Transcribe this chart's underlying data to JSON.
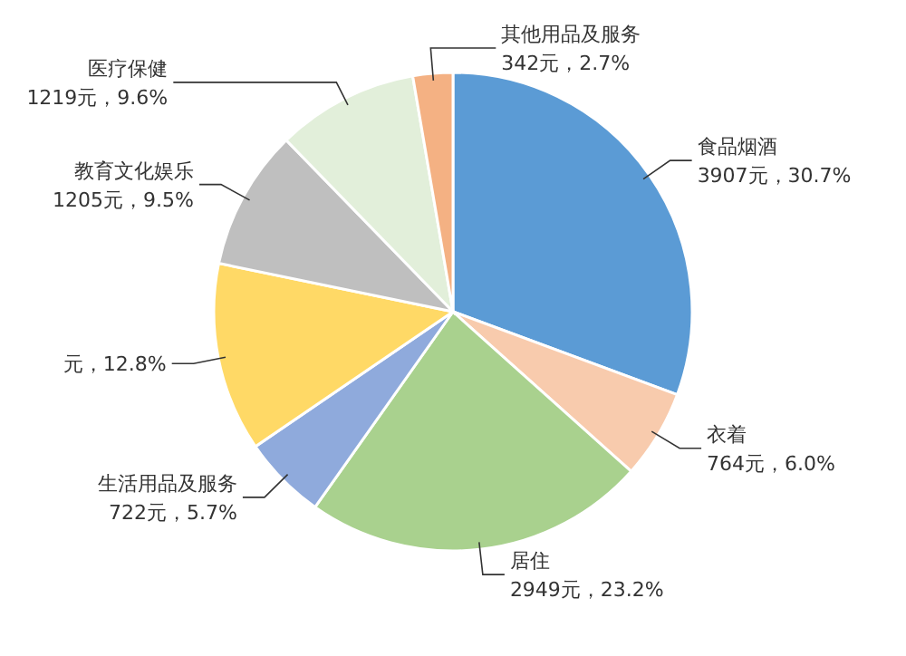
{
  "chart_data": {
    "type": "pie",
    "categories": [
      "食品烟酒",
      "衣着",
      "居住",
      "生活用品及服务",
      null,
      "教育文化娱乐",
      "医疗保健",
      "其他用品及服务"
    ],
    "values": [
      30.7,
      6.0,
      23.2,
      5.7,
      12.8,
      9.5,
      9.6,
      2.7
    ],
    "value_labels": [
      "3907元，30.7%",
      "764元，6.0%",
      "2949元，23.2%",
      "722元，5.7%",
      "元，12.8%",
      "1205元，9.5%",
      "1219元，9.6%",
      "342元，2.7%"
    ],
    "colors": [
      "#5b9bd5",
      "#f8cbad",
      "#a9d18e",
      "#8faadc",
      "#ffd966",
      "#bfbfbf",
      "#e2efda",
      "#f4b183"
    ]
  }
}
